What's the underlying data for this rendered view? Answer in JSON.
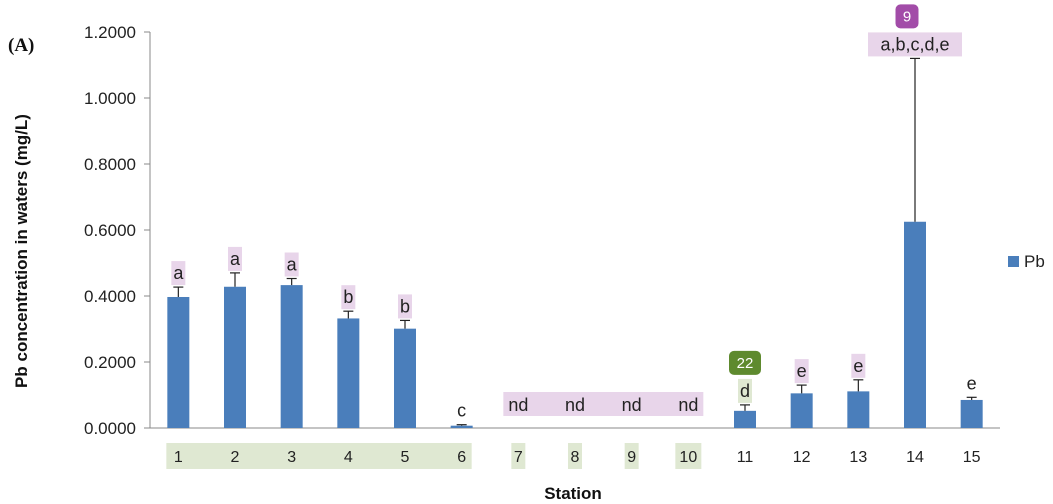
{
  "panel_label": "(A)",
  "chart_data": {
    "type": "bar",
    "categories": [
      "1",
      "2",
      "3",
      "4",
      "5",
      "6",
      "7",
      "8",
      "9",
      "10",
      "11",
      "12",
      "13",
      "14",
      "15"
    ],
    "series": [
      {
        "name": "Pb",
        "color": "#4a7ebb",
        "values": [
          0.397,
          0.428,
          0.433,
          0.332,
          0.301,
          0.007,
          0,
          0,
          0,
          0,
          0.052,
          0.105,
          0.111,
          0.625,
          0.085
        ],
        "errors": [
          0.03,
          0.042,
          0.02,
          0.022,
          0.025,
          0.003,
          0,
          0,
          0,
          0,
          0.018,
          0.025,
          0.035,
          0.495,
          0.008
        ]
      }
    ],
    "sig_labels": [
      "a",
      "a",
      "a",
      "b",
      "b",
      "c",
      "nd",
      "nd",
      "nd",
      "nd",
      "d",
      "e",
      "e",
      "a,b,c,d,e",
      "e"
    ],
    "xlabel": "Station",
    "ylabel": "Pb concentration in waters (mg/L)",
    "ylim": [
      0,
      1.2
    ],
    "yticks": [
      "0.0000",
      "0.2000",
      "0.4000",
      "0.6000",
      "0.8000",
      "1.0000",
      "1.2000"
    ],
    "grid": false,
    "legend": {
      "position": "right",
      "entries": [
        "Pb"
      ]
    },
    "highlights": {
      "x_categories_green": [
        "1",
        "2",
        "3",
        "4",
        "5",
        "6",
        "7",
        "8",
        "9",
        "10"
      ],
      "label_pink_color": "#e8d5ea",
      "label_green_color": "#dfe8d2"
    },
    "badges": [
      {
        "text": "9",
        "category": "14",
        "color": "#a24ca8"
      },
      {
        "text": "22",
        "category": "11",
        "color": "#5e8a2e"
      }
    ]
  }
}
